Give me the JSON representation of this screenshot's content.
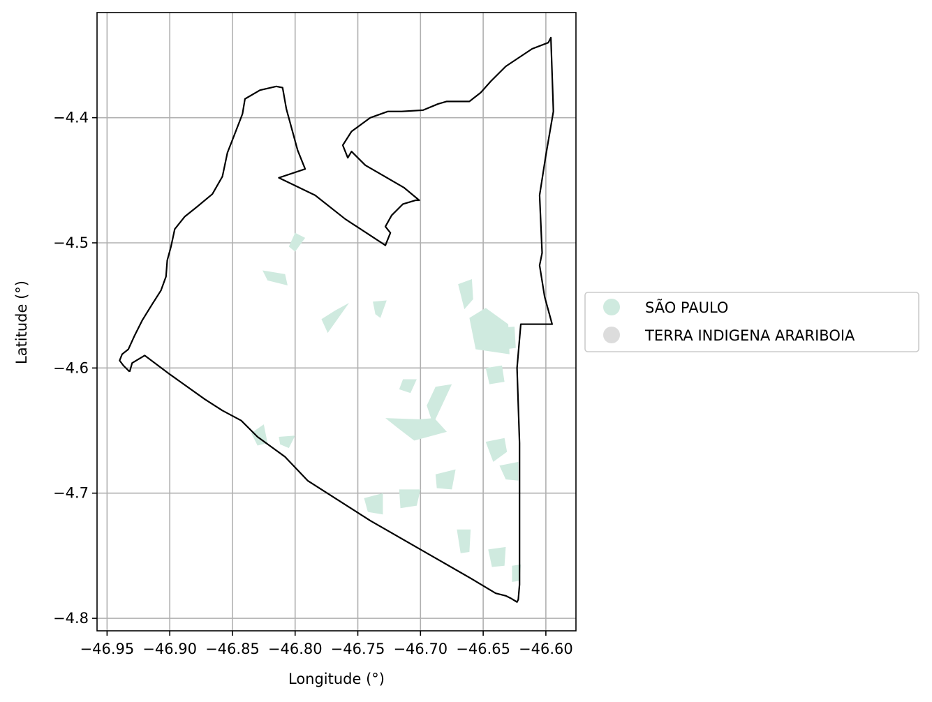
{
  "chart_data": {
    "type": "map",
    "title": "",
    "xlabel": "Longitude (°)",
    "ylabel": "Latitude (°)",
    "xlim": [
      -46.958,
      -46.576
    ],
    "ylim": [
      -4.81,
      -4.316
    ],
    "grid": true,
    "x_ticks": [
      -46.95,
      -46.9,
      -46.85,
      -46.8,
      -46.75,
      -46.7,
      -46.65,
      -46.6
    ],
    "x_tick_labels": [
      "−46.95",
      "−46.90",
      "−46.85",
      "−46.80",
      "−46.75",
      "−46.70",
      "−46.65",
      "−46.60"
    ],
    "y_ticks": [
      -4.4,
      -4.5,
      -4.6,
      -4.7,
      -4.8
    ],
    "y_tick_labels": [
      "−4.4",
      "−4.5",
      "−4.6",
      "−4.7",
      "−4.8"
    ],
    "legend_position": "right",
    "legend": [
      {
        "label": "SÃO PAULO",
        "color": "#cfeadf"
      },
      {
        "label": "TERRA INDIGENA ARARIBOIA",
        "color": "#dcdcdc"
      }
    ],
    "boundary": {
      "stroke": "#000000",
      "points": [
        [
          -46.932,
          -4.603
        ],
        [
          -46.937,
          -4.598
        ],
        [
          -46.94,
          -4.594
        ],
        [
          -46.938,
          -4.589
        ],
        [
          -46.933,
          -4.585
        ],
        [
          -46.928,
          -4.574
        ],
        [
          -46.922,
          -4.562
        ],
        [
          -46.914,
          -4.549
        ],
        [
          -46.907,
          -4.538
        ],
        [
          -46.903,
          -4.527
        ],
        [
          -46.902,
          -4.514
        ],
        [
          -46.899,
          -4.503
        ],
        [
          -46.896,
          -4.489
        ],
        [
          -46.888,
          -4.479
        ],
        [
          -46.878,
          -4.471
        ],
        [
          -46.866,
          -4.461
        ],
        [
          -46.858,
          -4.447
        ],
        [
          -46.854,
          -4.428
        ],
        [
          -46.847,
          -4.41
        ],
        [
          -46.842,
          -4.397
        ],
        [
          -46.84,
          -4.385
        ],
        [
          -46.828,
          -4.378
        ],
        [
          -46.815,
          -4.375
        ],
        [
          -46.81,
          -4.376
        ],
        [
          -46.807,
          -4.393
        ],
        [
          -46.798,
          -4.426
        ],
        [
          -46.792,
          -4.441
        ],
        [
          -46.813,
          -4.448
        ],
        [
          -46.784,
          -4.462
        ],
        [
          -46.76,
          -4.481
        ],
        [
          -46.728,
          -4.502
        ],
        [
          -46.724,
          -4.492
        ],
        [
          -46.728,
          -4.487
        ],
        [
          -46.723,
          -4.478
        ],
        [
          -46.714,
          -4.469
        ],
        [
          -46.704,
          -4.466
        ],
        [
          -46.701,
          -4.466
        ],
        [
          -46.713,
          -4.456
        ],
        [
          -46.725,
          -4.449
        ],
        [
          -46.744,
          -4.438
        ],
        [
          -46.755,
          -4.427
        ],
        [
          -46.758,
          -4.432
        ],
        [
          -46.762,
          -4.422
        ],
        [
          -46.755,
          -4.411
        ],
        [
          -46.74,
          -4.4
        ],
        [
          -46.726,
          -4.395
        ],
        [
          -46.715,
          -4.395
        ],
        [
          -46.698,
          -4.394
        ],
        [
          -46.686,
          -4.389
        ],
        [
          -46.679,
          -4.387
        ],
        [
          -46.661,
          -4.387
        ],
        [
          -46.652,
          -4.38
        ],
        [
          -46.644,
          -4.371
        ],
        [
          -46.632,
          -4.359
        ],
        [
          -46.611,
          -4.345
        ],
        [
          -46.598,
          -4.34
        ],
        [
          -46.596,
          -4.336
        ],
        [
          -46.594,
          -4.395
        ],
        [
          -46.6,
          -4.43
        ],
        [
          -46.605,
          -4.462
        ],
        [
          -46.603,
          -4.508
        ],
        [
          -46.605,
          -4.518
        ],
        [
          -46.601,
          -4.543
        ],
        [
          -46.595,
          -4.565
        ],
        [
          -46.609,
          -4.565
        ],
        [
          -46.62,
          -4.565
        ],
        [
          -46.623,
          -4.6
        ],
        [
          -46.621,
          -4.66
        ],
        [
          -46.621,
          -4.72
        ],
        [
          -46.621,
          -4.773
        ],
        [
          -46.622,
          -4.785
        ],
        [
          -46.623,
          -4.787
        ],
        [
          -46.628,
          -4.784
        ],
        [
          -46.632,
          -4.782
        ],
        [
          -46.64,
          -4.78
        ],
        [
          -46.66,
          -4.768
        ],
        [
          -46.7,
          -4.745
        ],
        [
          -46.74,
          -4.722
        ],
        [
          -46.79,
          -4.69
        ],
        [
          -46.808,
          -4.671
        ],
        [
          -46.83,
          -4.655
        ],
        [
          -46.843,
          -4.642
        ],
        [
          -46.858,
          -4.634
        ],
        [
          -46.872,
          -4.625
        ],
        [
          -46.9,
          -4.605
        ],
        [
          -46.92,
          -4.59
        ],
        [
          -46.93,
          -4.596
        ],
        [
          -46.932,
          -4.603
        ]
      ]
    },
    "fill_regions": [
      {
        "name": "SÃO PAULO",
        "polygon": [
          [
            -46.826,
            -4.522
          ],
          [
            -46.808,
            -4.525
          ],
          [
            -46.806,
            -4.534
          ],
          [
            -46.822,
            -4.53
          ]
        ]
      },
      {
        "name": "SÃO PAULO",
        "polygon": [
          [
            -46.8,
            -4.492
          ],
          [
            -46.792,
            -4.496
          ],
          [
            -46.8,
            -4.507
          ],
          [
            -46.805,
            -4.503
          ]
        ]
      },
      {
        "name": "SÃO PAULO",
        "polygon": [
          [
            -46.779,
            -4.561
          ],
          [
            -46.768,
            -4.554
          ],
          [
            -46.757,
            -4.548
          ],
          [
            -46.774,
            -4.572
          ]
        ]
      },
      {
        "name": "SÃO PAULO",
        "polygon": [
          [
            -46.738,
            -4.547
          ],
          [
            -46.727,
            -4.546
          ],
          [
            -46.732,
            -4.56
          ],
          [
            -46.736,
            -4.557
          ]
        ]
      },
      {
        "name": "SÃO PAULO",
        "polygon": [
          [
            -46.67,
            -4.533
          ],
          [
            -46.659,
            -4.529
          ],
          [
            -46.658,
            -4.545
          ],
          [
            -46.665,
            -4.553
          ]
        ]
      },
      {
        "name": "SÃO PAULO",
        "polygon": [
          [
            -46.661,
            -4.56
          ],
          [
            -46.648,
            -4.552
          ],
          [
            -46.63,
            -4.565
          ],
          [
            -46.629,
            -4.589
          ],
          [
            -46.656,
            -4.585
          ]
        ]
      },
      {
        "name": "SÃO PAULO",
        "polygon": [
          [
            -46.64,
            -4.568
          ],
          [
            -46.625,
            -4.567
          ],
          [
            -46.624,
            -4.584
          ],
          [
            -46.632,
            -4.585
          ]
        ]
      },
      {
        "name": "SÃO PAULO",
        "polygon": [
          [
            -46.728,
            -4.64
          ],
          [
            -46.701,
            -4.641
          ],
          [
            -46.689,
            -4.64
          ],
          [
            -46.679,
            -4.651
          ],
          [
            -46.705,
            -4.658
          ],
          [
            -46.718,
            -4.648
          ]
        ]
      },
      {
        "name": "SÃO PAULO",
        "polygon": [
          [
            -46.688,
            -4.615
          ],
          [
            -46.675,
            -4.613
          ],
          [
            -46.69,
            -4.645
          ],
          [
            -46.695,
            -4.63
          ]
        ]
      },
      {
        "name": "SÃO PAULO",
        "polygon": [
          [
            -46.648,
            -4.6
          ],
          [
            -46.635,
            -4.598
          ],
          [
            -46.633,
            -4.611
          ],
          [
            -46.645,
            -4.613
          ]
        ]
      },
      {
        "name": "SÃO PAULO",
        "polygon": [
          [
            -46.714,
            -4.609
          ],
          [
            -46.703,
            -4.609
          ],
          [
            -46.708,
            -4.62
          ],
          [
            -46.717,
            -4.617
          ]
        ]
      },
      {
        "name": "SÃO PAULO",
        "polygon": [
          [
            -46.835,
            -4.652
          ],
          [
            -46.825,
            -4.645
          ],
          [
            -46.822,
            -4.66
          ],
          [
            -46.83,
            -4.662
          ]
        ]
      },
      {
        "name": "SÃO PAULO",
        "polygon": [
          [
            -46.813,
            -4.655
          ],
          [
            -46.8,
            -4.654
          ],
          [
            -46.805,
            -4.664
          ],
          [
            -46.812,
            -4.661
          ]
        ]
      },
      {
        "name": "SÃO PAULO",
        "polygon": [
          [
            -46.648,
            -4.659
          ],
          [
            -46.633,
            -4.656
          ],
          [
            -46.631,
            -4.667
          ],
          [
            -46.642,
            -4.675
          ]
        ]
      },
      {
        "name": "SÃO PAULO",
        "polygon": [
          [
            -46.637,
            -4.678
          ],
          [
            -46.622,
            -4.675
          ],
          [
            -46.622,
            -4.69
          ],
          [
            -46.632,
            -4.689
          ]
        ]
      },
      {
        "name": "SÃO PAULO",
        "polygon": [
          [
            -46.688,
            -4.685
          ],
          [
            -46.672,
            -4.681
          ],
          [
            -46.675,
            -4.697
          ],
          [
            -46.687,
            -4.696
          ]
        ]
      },
      {
        "name": "SÃO PAULO",
        "polygon": [
          [
            -46.717,
            -4.697
          ],
          [
            -46.7,
            -4.697
          ],
          [
            -46.703,
            -4.71
          ],
          [
            -46.716,
            -4.712
          ]
        ]
      },
      {
        "name": "SÃO PAULO",
        "polygon": [
          [
            -46.745,
            -4.704
          ],
          [
            -46.73,
            -4.7
          ],
          [
            -46.73,
            -4.717
          ],
          [
            -46.742,
            -4.715
          ]
        ]
      },
      {
        "name": "SÃO PAULO",
        "polygon": [
          [
            -46.671,
            -4.729
          ],
          [
            -46.66,
            -4.729
          ],
          [
            -46.661,
            -4.747
          ],
          [
            -46.668,
            -4.748
          ]
        ]
      },
      {
        "name": "SÃO PAULO",
        "polygon": [
          [
            -46.646,
            -4.745
          ],
          [
            -46.632,
            -4.743
          ],
          [
            -46.633,
            -4.758
          ],
          [
            -46.643,
            -4.759
          ]
        ]
      },
      {
        "name": "SÃO PAULO",
        "polygon": [
          [
            -46.627,
            -4.758
          ],
          [
            -46.62,
            -4.757
          ],
          [
            -46.621,
            -4.77
          ],
          [
            -46.627,
            -4.771
          ]
        ]
      }
    ]
  }
}
